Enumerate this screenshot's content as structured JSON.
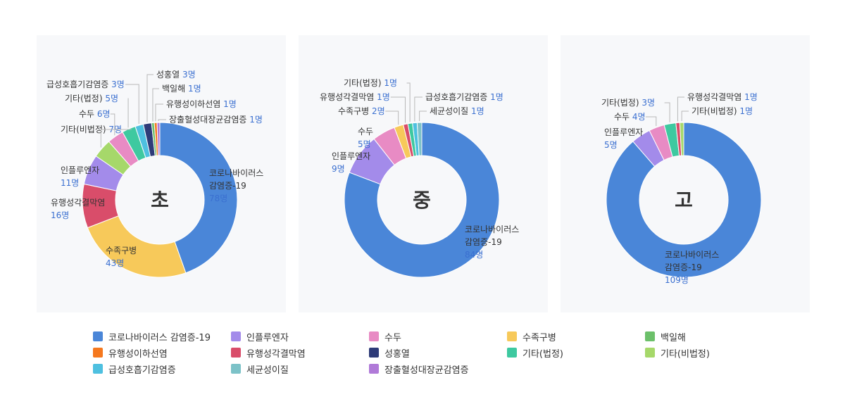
{
  "legend": [
    {
      "label": "코로나바이러스 감염증-19",
      "color": "#4a86d8"
    },
    {
      "label": "인플루엔자",
      "color": "#a38bea"
    },
    {
      "label": "수두",
      "color": "#e88bc4"
    },
    {
      "label": "수족구병",
      "color": "#f7c95a"
    },
    {
      "label": "백일해",
      "color": "#6cc06a"
    },
    {
      "label": "유행성이하선염",
      "color": "#f5781e"
    },
    {
      "label": "유행성각결막염",
      "color": "#d94d6a"
    },
    {
      "label": "성홍열",
      "color": "#2e3b78"
    },
    {
      "label": "기타(법정)",
      "color": "#3ec9a0"
    },
    {
      "label": "기타(비법정)",
      "color": "#a6d86a"
    },
    {
      "label": "급성호흡기감염증",
      "color": "#4ec0e0"
    },
    {
      "label": "세균성이질",
      "color": "#7cc2c8"
    },
    {
      "label": "장출혈성대장균감염증",
      "color": "#b07ad8"
    }
  ],
  "chart_data": [
    {
      "type": "pie",
      "center_label": "초",
      "slices": [
        {
          "label": "코로나바이러스 감염증-19",
          "value": 78,
          "text": "코로나바이러스\n감염증-19",
          "value_text": "78명",
          "color": "#4a86d8"
        },
        {
          "label": "수족구병",
          "value": 43,
          "text": "수족구병",
          "value_text": "43명",
          "color": "#f7c95a"
        },
        {
          "label": "유행성각결막염",
          "value": 16,
          "text": "유행성각결막염",
          "value_text": "16명",
          "color": "#d94d6a"
        },
        {
          "label": "인플루엔자",
          "value": 11,
          "text": "인플루엔자",
          "value_text": "11명",
          "color": "#a38bea"
        },
        {
          "label": "기타(비법정)",
          "value": 7,
          "text": "기타(비법정)",
          "value_text": "7명",
          "color": "#a6d86a"
        },
        {
          "label": "수두",
          "value": 6,
          "text": "수두",
          "value_text": "6명",
          "color": "#e88bc4"
        },
        {
          "label": "기타(법정)",
          "value": 5,
          "text": "기타(법정)",
          "value_text": "5명",
          "color": "#3ec9a0"
        },
        {
          "label": "급성호흡기감염증",
          "value": 3,
          "text": "급성호흡기감염증",
          "value_text": "3명",
          "color": "#4ec0e0"
        },
        {
          "label": "성홍열",
          "value": 3,
          "text": "성홍열",
          "value_text": "3명",
          "color": "#2e3b78"
        },
        {
          "label": "백일해",
          "value": 1,
          "text": "백일해",
          "value_text": "1명",
          "color": "#6cc06a"
        },
        {
          "label": "유행성이하선염",
          "value": 1,
          "text": "유행성이하선염",
          "value_text": "1명",
          "color": "#f5781e"
        },
        {
          "label": "장출혈성대장균감염증",
          "value": 1,
          "text": "장출혈성대장균감염증",
          "value_text": "1명",
          "color": "#b07ad8"
        }
      ]
    },
    {
      "type": "pie",
      "center_label": "중",
      "slices": [
        {
          "label": "코로나바이러스 감염증-19",
          "value": 84,
          "text": "코로나바이러스\n감염증-19",
          "value_text": "84명",
          "color": "#4a86d8"
        },
        {
          "label": "인플루엔자",
          "value": 9,
          "text": "인플루엔자",
          "value_text": "9명",
          "color": "#a38bea"
        },
        {
          "label": "수두",
          "value": 5,
          "text": "수두",
          "value_text": "5명",
          "color": "#e88bc4"
        },
        {
          "label": "수족구병",
          "value": 2,
          "text": "수족구병",
          "value_text": "2명",
          "color": "#f7c95a"
        },
        {
          "label": "유행성각결막염",
          "value": 1,
          "text": "유행성각결막염",
          "value_text": "1명",
          "color": "#d94d6a"
        },
        {
          "label": "기타(법정)",
          "value": 1,
          "text": "기타(법정)",
          "value_text": "1명",
          "color": "#3ec9a0"
        },
        {
          "label": "급성호흡기감염증",
          "value": 1,
          "text": "급성호흡기감염증",
          "value_text": "1명",
          "color": "#4ec0e0"
        },
        {
          "label": "세균성이질",
          "value": 1,
          "text": "세균성이질",
          "value_text": "1명",
          "color": "#7cc2c8"
        }
      ]
    },
    {
      "type": "pie",
      "center_label": "고",
      "slices": [
        {
          "label": "코로나바이러스 감염증-19",
          "value": 109,
          "text": "코로나바이러스\n감염증-19",
          "value_text": "109명",
          "color": "#4a86d8"
        },
        {
          "label": "인플루엔자",
          "value": 5,
          "text": "인플루엔자",
          "value_text": "5명",
          "color": "#a38bea"
        },
        {
          "label": "수두",
          "value": 4,
          "text": "수두",
          "value_text": "4명",
          "color": "#e88bc4"
        },
        {
          "label": "기타(법정)",
          "value": 3,
          "text": "기타(법정)",
          "value_text": "3명",
          "color": "#3ec9a0"
        },
        {
          "label": "유행성각결막염",
          "value": 1,
          "text": "유행성각결막염",
          "value_text": "1명",
          "color": "#d94d6a"
        },
        {
          "label": "기타(비법정)",
          "value": 1,
          "text": "기타(비법정)",
          "value_text": "1명",
          "color": "#a6d86a"
        }
      ]
    }
  ]
}
